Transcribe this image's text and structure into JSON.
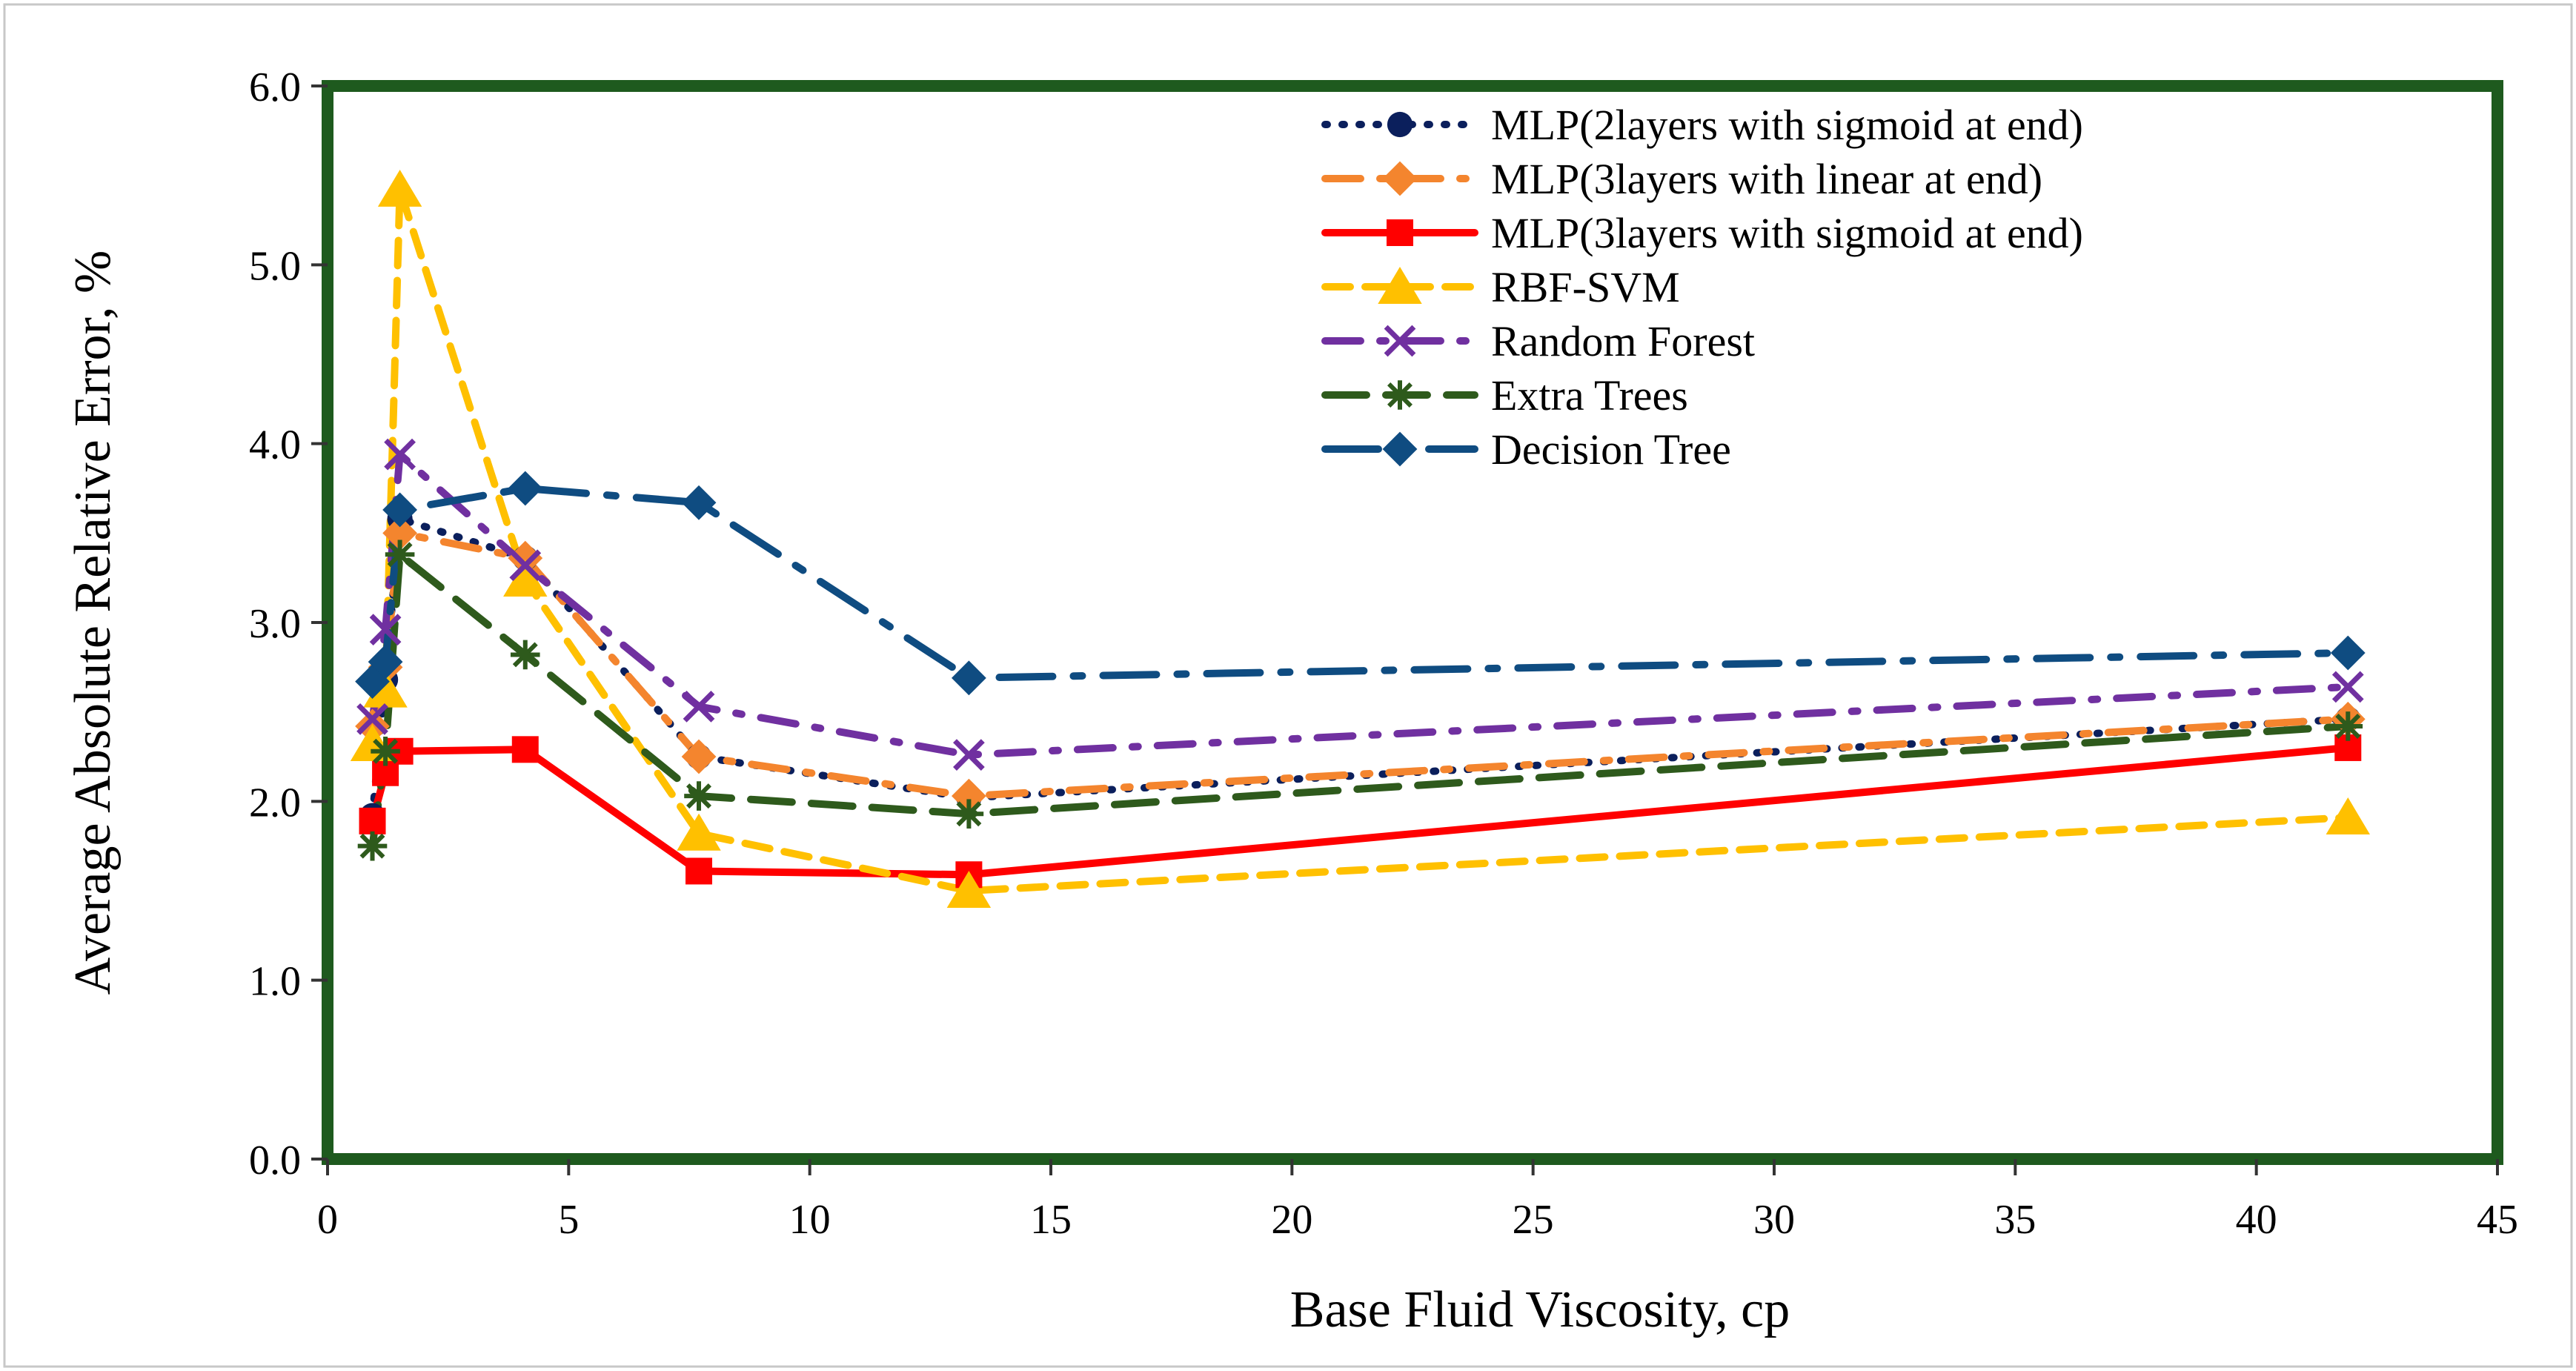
{
  "chart_data": {
    "type": "line",
    "xlabel": "Base Fluid Viscosity, cp",
    "ylabel": "Average Absolute Relative Error, %",
    "xlim": [
      0,
      45
    ],
    "ylim": [
      0.0,
      6.0
    ],
    "xticks": [
      "0",
      "5",
      "10",
      "15",
      "20",
      "25",
      "30",
      "35",
      "40",
      "45"
    ],
    "yticks": [
      "0.0",
      "1.0",
      "2.0",
      "3.0",
      "4.0",
      "5.0",
      "6.0"
    ],
    "grid": false,
    "legend_position": "top-right",
    "x": [
      0.93,
      1.2,
      1.5,
      4.1,
      7.7,
      13.3,
      41.9
    ],
    "series": [
      {
        "name": "MLP(2layers with sigmoid at end)",
        "color": "#0b1f5c",
        "dash": "dotted",
        "marker": "circle",
        "values": [
          1.92,
          2.68,
          3.58,
          3.36,
          2.25,
          2.02,
          2.46
        ]
      },
      {
        "name": "MLP(3layers with linear at end)",
        "color": "#f4852e",
        "dash": "dashdot",
        "marker": "diamond",
        "values": [
          2.42,
          2.75,
          3.5,
          3.36,
          2.25,
          2.03,
          2.46
        ]
      },
      {
        "name": "MLP(3layers with sigmoid at end)",
        "color": "#ff0000",
        "dash": "solid",
        "marker": "square",
        "values": [
          1.89,
          2.16,
          2.28,
          2.29,
          1.61,
          1.59,
          2.3
        ]
      },
      {
        "name": "RBF-SVM",
        "color": "#ffc000",
        "dash": "dashed",
        "marker": "triangle",
        "values": [
          2.32,
          2.62,
          5.42,
          3.24,
          1.82,
          1.5,
          1.91
        ]
      },
      {
        "name": "Random Forest",
        "color": "#7030a0",
        "dash": "dashdot",
        "marker": "x",
        "values": [
          2.46,
          2.96,
          3.94,
          3.32,
          2.53,
          2.26,
          2.64
        ]
      },
      {
        "name": "Extra Trees",
        "color": "#2e5a1c",
        "dash": "longdash",
        "marker": "star",
        "values": [
          1.75,
          2.28,
          3.38,
          2.82,
          2.03,
          1.93,
          2.42
        ]
      },
      {
        "name": "Decision Tree",
        "color": "#0f4c81",
        "dash": "longdashdot",
        "marker": "diamond",
        "values": [
          2.67,
          2.78,
          3.63,
          3.75,
          3.67,
          2.69,
          2.83
        ]
      }
    ]
  }
}
